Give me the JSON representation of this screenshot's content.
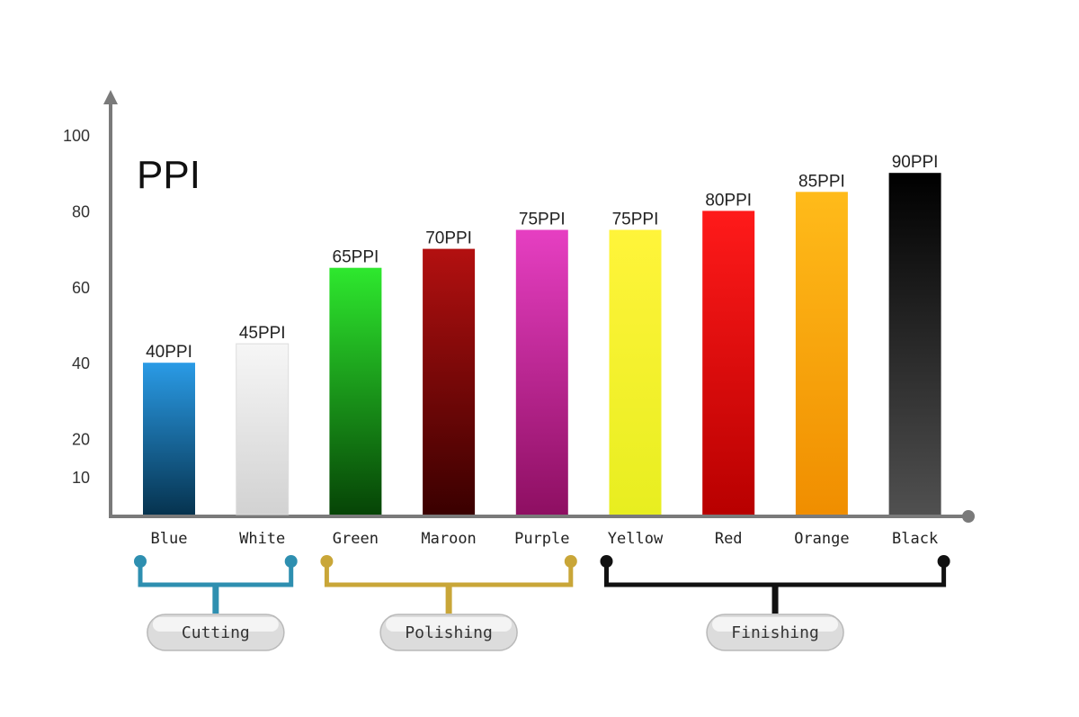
{
  "chart_data": {
    "type": "bar",
    "title": "PPI",
    "categories": [
      "Blue",
      "White",
      "Green",
      "Maroon",
      "Purple",
      "Yellow",
      "Red",
      "Orange",
      "Black"
    ],
    "values": [
      40,
      45,
      65,
      70,
      75,
      75,
      80,
      85,
      90
    ],
    "data_labels": [
      "40PPI",
      "45PPI",
      "65PPI",
      "70PPI",
      "75PPI",
      "75PPI",
      "80PPI",
      "85PPI",
      "90PPI"
    ],
    "bar_colors": [
      [
        "#2a9be6",
        "#06334f"
      ],
      [
        "#f6f6f6",
        "#d2d2d2"
      ],
      [
        "#2ee82e",
        "#064406"
      ],
      [
        "#b31010",
        "#3a0000"
      ],
      [
        "#e63fc2",
        "#8e0f62"
      ],
      [
        "#fff43a",
        "#e8ee20"
      ],
      [
        "#ff1a1a",
        "#b80000"
      ],
      [
        "#ffbb1a",
        "#f08e00"
      ],
      [
        "#000000",
        "#505050"
      ]
    ],
    "yticks": [
      10,
      20,
      40,
      60,
      80,
      100
    ],
    "ylim": [
      0,
      100
    ],
    "xlabel": "",
    "ylabel": "",
    "grid": false,
    "groups": [
      {
        "name": "Cutting",
        "start": 0,
        "end": 1,
        "color": "#2e8fb0"
      },
      {
        "name": "Polishing",
        "start": 2,
        "end": 4,
        "color": "#c9a638"
      },
      {
        "name": "Finishing",
        "start": 5,
        "end": 8,
        "color": "#111111"
      }
    ]
  }
}
